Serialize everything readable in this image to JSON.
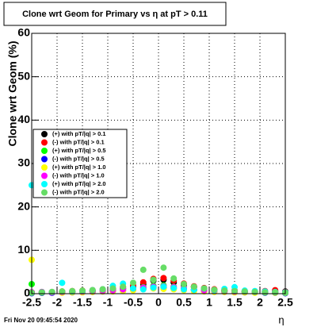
{
  "chart_data": {
    "type": "scatter",
    "title": "Clone wrt Geom for Primary vs   η at pT > 0.11",
    "y_label": "Clone wrt Geom (%)",
    "x_label": "η",
    "timestamp": "Fri Nov 20 09:45:54 2020",
    "x": [
      -2.5,
      -2.3,
      -2.1,
      -1.9,
      -1.7,
      -1.5,
      -1.3,
      -1.1,
      -0.9,
      -0.7,
      -0.5,
      -0.3,
      -0.1,
      0.1,
      0.3,
      0.5,
      0.7,
      0.9,
      1.1,
      1.3,
      1.5,
      1.7,
      1.9,
      2.1,
      2.3,
      2.5
    ],
    "series": [
      {
        "name": "(+) with pT/|q| > 0.1",
        "color": "#000000",
        "values": [
          0.3,
          0.2,
          0.3,
          0.4,
          0.5,
          0.6,
          0.7,
          0.8,
          1,
          1.2,
          1.6,
          2.2,
          3,
          3.2,
          2.6,
          2,
          1.5,
          1.1,
          0.9,
          0.7,
          0.6,
          0.5,
          0.4,
          0.4,
          0.6,
          0.5
        ]
      },
      {
        "name": "(-) with pT/|q| > 0.1",
        "color": "#ff0000",
        "values": [
          0.2,
          0.3,
          0.4,
          0.5,
          0.6,
          0.7,
          0.8,
          1,
          1.2,
          1.5,
          1.9,
          2.6,
          3.4,
          3.6,
          3,
          2.3,
          1.7,
          1.3,
          1,
          0.8,
          0.7,
          0.6,
          0.5,
          0.6,
          0.8,
          0.4
        ]
      },
      {
        "name": "(+) with pT/|q| > 0.5",
        "color": "#00ff00",
        "values": [
          2.2,
          0.4,
          0.3,
          0.5,
          0.4,
          0.6,
          0.5,
          0.7,
          0.8,
          1,
          1.2,
          1.5,
          1.8,
          1.9,
          1.6,
          1.2,
          0.9,
          0.8,
          0.7,
          0.6,
          0.5,
          0.4,
          0.5,
          0.4,
          0.3,
          0.3
        ]
      },
      {
        "name": "(-) with pT/|q| > 0.5",
        "color": "#0000ff",
        "values": [
          0.1,
          0.2,
          0.2,
          0.3,
          0.3,
          0.4,
          0.4,
          0.5,
          0.6,
          0.7,
          0.9,
          1.1,
          1.3,
          1.4,
          1.2,
          1,
          0.8,
          0.6,
          0.5,
          0.4,
          0.4,
          0.3,
          0.3,
          0.2,
          0.2,
          0.1
        ]
      },
      {
        "name": "(+) with pT/|q| > 1.0",
        "color": "#ffff00",
        "values": [
          7.8,
          0.3,
          0.4,
          0.2,
          0.3,
          0.3,
          0.4,
          0.5,
          0.5,
          0.6,
          0.8,
          1,
          1.2,
          1.1,
          1,
          0.8,
          0.6,
          0.5,
          0.4,
          0.4,
          0.3,
          0.3,
          0.2,
          0.3,
          0.2,
          0.2
        ]
      },
      {
        "name": "(-) with pT/|q| > 1.0",
        "color": "#ff00ff",
        "values": [
          0.3,
          0.4,
          0.3,
          0.4,
          0.5,
          0.5,
          0.6,
          0.7,
          0.8,
          1,
          1.2,
          1.4,
          1.6,
          1.7,
          1.5,
          1.2,
          1,
          0.8,
          0.7,
          0.6,
          0.5,
          0.5,
          0.4,
          0.4,
          0.3,
          0.3
        ]
      },
      {
        "name": "(+) with pT/|q| > 2.0",
        "color": "#00ffff",
        "values": [
          25,
          0.3,
          0.4,
          2.5,
          0.5,
          0.6,
          0.8,
          1,
          1.8,
          2.3,
          1.2,
          1,
          1.4,
          1.6,
          1.3,
          1,
          0.9,
          1.2,
          0.8,
          1.1,
          1.5,
          0.7,
          0.6,
          0.5,
          0.4,
          0.3
        ]
      },
      {
        "name": "(-) with pT/|q| > 2.0",
        "color": "#66dd66",
        "values": [
          0.2,
          0.3,
          0.4,
          0.5,
          0.6,
          0.7,
          0.8,
          1,
          1.2,
          1.6,
          2.5,
          5.5,
          3.2,
          6,
          3.5,
          2.2,
          1.6,
          1.2,
          0.9,
          0.7,
          0.6,
          0.5,
          0.4,
          0.3,
          0.3,
          0.2
        ]
      }
    ],
    "xlim": [
      -2.5,
      2.5
    ],
    "ylim": [
      0,
      60
    ],
    "xticks": [
      -2.5,
      -2,
      -1.5,
      -1,
      -0.5,
      0,
      0.5,
      1,
      1.5,
      2,
      2.5
    ],
    "yticks": [
      0,
      10,
      20,
      30,
      40,
      50,
      60
    ],
    "grid": true
  }
}
